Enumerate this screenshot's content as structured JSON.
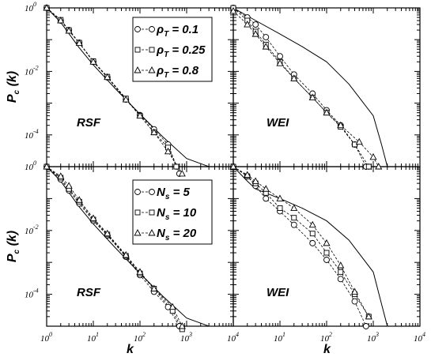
{
  "chart_data": {
    "type": "scatter",
    "log_x": true,
    "log_y": true,
    "xlim": [
      1,
      10000
    ],
    "ylim": [
      1e-05,
      1
    ],
    "xlabel": "k",
    "ylabel": "P_c (k)",
    "x_tick_labels": [
      "10^0",
      "10^1",
      "10^2",
      "10^3",
      "10^4"
    ],
    "y_tick_labels": [
      "10^0",
      "10^-2",
      "10^-4"
    ],
    "panels": [
      {
        "id": "top-left",
        "label": "RSF",
        "legend": [
          {
            "marker": "circle",
            "text": "ρ_T = 0.1"
          },
          {
            "marker": "square",
            "text": "ρ_T = 0.25"
          },
          {
            "marker": "triangle",
            "text": "ρ_T = 0.8"
          }
        ],
        "reference_curve": {
          "x": [
            1,
            2,
            5,
            10,
            30,
            100,
            300,
            1000,
            3000,
            4000
          ],
          "y": [
            1,
            0.35,
            0.055,
            0.016,
            0.0028,
            0.00045,
            9e-05,
            1.8e-05,
            2.5e-06,
            1e-06
          ]
        },
        "series": [
          {
            "marker": "circle",
            "x": [
              1,
              2,
              3,
              5,
              10,
              20,
              50,
              100,
              200,
              400,
              700
            ],
            "y": [
              1,
              0.4,
              0.2,
              0.08,
              0.02,
              0.0065,
              0.0013,
              0.00042,
              0.00015,
              5e-05,
              6e-06
            ]
          },
          {
            "marker": "square",
            "x": [
              1,
              2,
              3,
              5,
              10,
              20,
              50,
              100,
              200,
              400,
              600
            ],
            "y": [
              1,
              0.42,
              0.2,
              0.08,
              0.021,
              0.0068,
              0.0014,
              0.0004,
              0.00012,
              4e-05,
              1e-05
            ]
          },
          {
            "marker": "triangle",
            "x": [
              1,
              2,
              3,
              5,
              10,
              20,
              50,
              100,
              200,
              400,
              800
            ],
            "y": [
              1,
              0.4,
              0.19,
              0.078,
              0.02,
              0.0066,
              0.0013,
              0.0004,
              0.00012,
              3e-05,
              6e-06
            ]
          }
        ]
      },
      {
        "id": "top-right",
        "label": "WEI",
        "legend": [],
        "reference_curve": {
          "x": [
            1,
            3,
            10,
            30,
            100,
            300,
            1000,
            1500,
            2000
          ],
          "y": [
            1,
            0.4,
            0.15,
            0.06,
            0.02,
            0.004,
            0.0004,
            5e-05,
            1e-05
          ]
        },
        "series": [
          {
            "marker": "circle",
            "x": [
              1,
              2,
              3,
              5,
              10,
              20,
              50,
              100,
              200,
              400,
              700
            ],
            "y": [
              1,
              0.5,
              0.3,
              0.12,
              0.03,
              0.008,
              0.002,
              0.0006,
              0.0002,
              5e-05,
              1e-05
            ]
          },
          {
            "marker": "square",
            "x": [
              1,
              2,
              3,
              5,
              10,
              20,
              50,
              100,
              200,
              400,
              800
            ],
            "y": [
              1,
              0.4,
              0.18,
              0.07,
              0.02,
              0.006,
              0.0015,
              0.0005,
              0.00018,
              5e-05,
              1e-05
            ]
          },
          {
            "marker": "triangle",
            "x": [
              1,
              2,
              3,
              5,
              10,
              20,
              50,
              100,
              200,
              500,
              1000,
              1300
            ],
            "y": [
              0.8,
              0.3,
              0.15,
              0.06,
              0.018,
              0.006,
              0.0015,
              0.0005,
              0.0002,
              6e-05,
              2e-05,
              1e-05
            ]
          }
        ]
      },
      {
        "id": "bottom-left",
        "label": "RSF",
        "legend": [
          {
            "marker": "circle",
            "text": "N_s = 5"
          },
          {
            "marker": "square",
            "text": "N_s = 10"
          },
          {
            "marker": "triangle",
            "text": "N_s = 20"
          }
        ],
        "reference_curve": {
          "x": [
            1,
            2,
            5,
            10,
            30,
            100,
            300,
            1000,
            3000,
            4000
          ],
          "y": [
            1,
            0.35,
            0.055,
            0.016,
            0.0028,
            0.00045,
            9e-05,
            1.8e-05,
            2.5e-06,
            1e-06
          ]
        },
        "series": [
          {
            "marker": "circle",
            "x": [
              1,
              2,
              3,
              5,
              10,
              20,
              50,
              100,
              200,
              400,
              700
            ],
            "y": [
              1,
              0.4,
              0.18,
              0.07,
              0.02,
              0.007,
              0.0015,
              0.0004,
              0.00012,
              4e-05,
              1e-05
            ]
          },
          {
            "marker": "square",
            "x": [
              1,
              2,
              3,
              5,
              10,
              20,
              50,
              100,
              200,
              500,
              800
            ],
            "y": [
              1,
              0.45,
              0.2,
              0.08,
              0.022,
              0.0075,
              0.0016,
              0.00045,
              0.00015,
              3e-05,
              8e-06
            ]
          },
          {
            "marker": "triangle",
            "x": [
              1,
              2,
              3,
              5,
              10,
              20,
              50,
              100,
              200,
              500,
              800
            ],
            "y": [
              1,
              0.5,
              0.25,
              0.09,
              0.024,
              0.008,
              0.0017,
              0.0005,
              0.00015,
              4e-05,
              1e-05
            ]
          }
        ]
      },
      {
        "id": "bottom-right",
        "label": "WEI",
        "legend": [],
        "reference_curve": {
          "x": [
            1,
            2,
            3,
            5,
            10,
            30,
            100,
            300,
            1000,
            1500,
            2000
          ],
          "y": [
            1,
            0.35,
            0.2,
            0.15,
            0.1,
            0.05,
            0.02,
            0.005,
            0.0005,
            5e-05,
            1e-05
          ]
        },
        "series": [
          {
            "marker": "circle",
            "x": [
              1,
              2,
              3,
              5,
              10,
              20,
              50,
              100,
              200,
              400,
              700
            ],
            "y": [
              1,
              0.5,
              0.25,
              0.1,
              0.04,
              0.015,
              0.004,
              0.0012,
              0.0003,
              6e-05,
              1e-05
            ]
          },
          {
            "marker": "square",
            "x": [
              1,
              2,
              3,
              5,
              10,
              20,
              50,
              100,
              200,
              400,
              800
            ],
            "y": [
              1,
              0.5,
              0.3,
              0.15,
              0.05,
              0.025,
              0.008,
              0.002,
              0.0005,
              0.0001,
              2e-05
            ]
          },
          {
            "marker": "triangle",
            "x": [
              1,
              2,
              3,
              5,
              10,
              20,
              50,
              100,
              200,
              400,
              800
            ],
            "y": [
              1,
              0.55,
              0.35,
              0.2,
              0.1,
              0.05,
              0.015,
              0.004,
              0.0008,
              0.00012,
              2e-05
            ]
          }
        ]
      }
    ]
  }
}
